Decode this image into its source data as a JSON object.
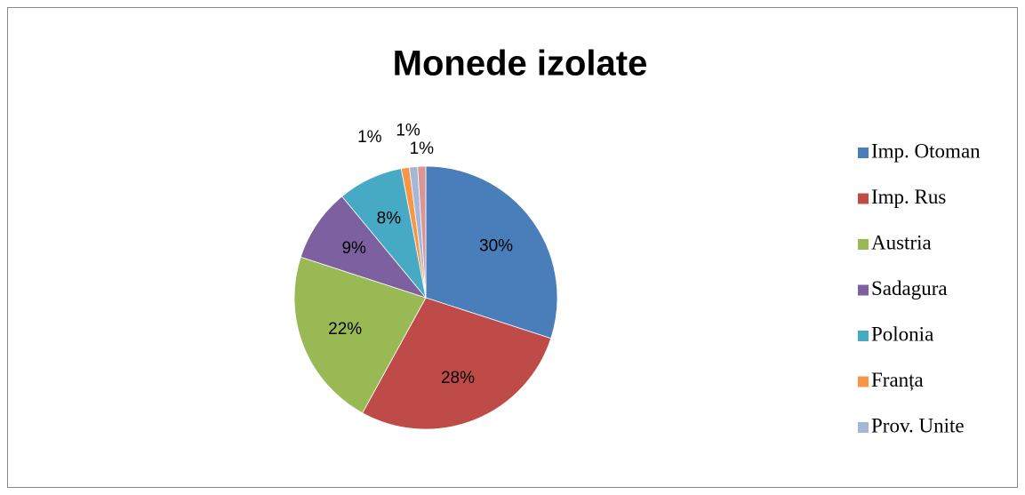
{
  "chart_data": {
    "type": "pie",
    "title": "Monede izolate",
    "categories": [
      "Imp. Otoman",
      "Imp. Rus",
      "Austria",
      "Sadagura",
      "Polonia",
      "Franța",
      "Prov. Unite",
      null
    ],
    "values": [
      30,
      28,
      22,
      9,
      8,
      1,
      1,
      1
    ],
    "value_labels": [
      "30%",
      "28%",
      "22%",
      "9%",
      "8%",
      "1%",
      "1%",
      "1%"
    ],
    "colors": [
      "#4a7ebb",
      "#be4b48",
      "#98b954",
      "#7d60a0",
      "#46aac5",
      "#f79646",
      "#a5b6d9",
      "#d99694"
    ],
    "legend": "right"
  }
}
